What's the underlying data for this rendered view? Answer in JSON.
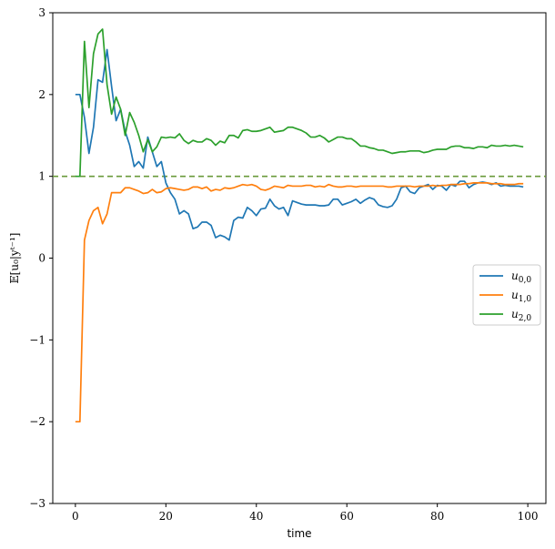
{
  "chart_data": {
    "type": "line",
    "title": "",
    "xlabel": "time",
    "ylabel": "𝔼[u₀|yᵗ⁻¹]",
    "xlim": [
      -5,
      104
    ],
    "ylim": [
      -3,
      3
    ],
    "xticks": [
      0,
      20,
      40,
      60,
      80,
      100
    ],
    "yticks": [
      -3,
      -2,
      -1,
      0,
      1,
      2,
      3
    ],
    "xtick_labels": [
      "0",
      "20",
      "40",
      "60",
      "80",
      "100"
    ],
    "ytick_labels": [
      "−3",
      "−2",
      "−1",
      "0",
      "1",
      "2",
      "3"
    ],
    "grid": false,
    "legend_position": "center-right",
    "reference_line": {
      "y": 1.0,
      "style": "dashed",
      "color": "#6a9a3a"
    },
    "series": [
      {
        "name": "u0,0",
        "color": "#1f77b4",
        "x": [
          0,
          1,
          2,
          3,
          4,
          5,
          6,
          7,
          8,
          9,
          10,
          11,
          12,
          13,
          14,
          15,
          16,
          17,
          18,
          19,
          20,
          21,
          22,
          23,
          24,
          25,
          26,
          27,
          28,
          29,
          30,
          31,
          32,
          33,
          34,
          35,
          36,
          37,
          38,
          39,
          40,
          41,
          42,
          43,
          44,
          45,
          46,
          47,
          48,
          49,
          50,
          51,
          52,
          53,
          54,
          55,
          56,
          57,
          58,
          59,
          60,
          61,
          62,
          63,
          64,
          65,
          66,
          67,
          68,
          69,
          70,
          71,
          72,
          73,
          74,
          75,
          76,
          77,
          78,
          79,
          80,
          81,
          82,
          83,
          84,
          85,
          86,
          87,
          88,
          89,
          90,
          91,
          92,
          93,
          94,
          95,
          96,
          97,
          98,
          99
        ],
        "y": [
          2.0,
          2.0,
          1.72,
          1.28,
          1.6,
          2.18,
          2.15,
          2.55,
          2.1,
          1.68,
          1.82,
          1.55,
          1.38,
          1.12,
          1.18,
          1.1,
          1.48,
          1.3,
          1.12,
          1.18,
          0.92,
          0.8,
          0.72,
          0.54,
          0.58,
          0.54,
          0.36,
          0.38,
          0.44,
          0.44,
          0.4,
          0.25,
          0.28,
          0.26,
          0.22,
          0.46,
          0.5,
          0.49,
          0.62,
          0.58,
          0.52,
          0.6,
          0.61,
          0.72,
          0.64,
          0.6,
          0.62,
          0.52,
          0.7,
          0.68,
          0.66,
          0.65,
          0.65,
          0.65,
          0.64,
          0.64,
          0.65,
          0.72,
          0.72,
          0.65,
          0.67,
          0.69,
          0.72,
          0.67,
          0.71,
          0.74,
          0.72,
          0.65,
          0.63,
          0.62,
          0.64,
          0.72,
          0.86,
          0.88,
          0.81,
          0.79,
          0.86,
          0.88,
          0.9,
          0.84,
          0.89,
          0.88,
          0.83,
          0.9,
          0.88,
          0.94,
          0.94,
          0.86,
          0.9,
          0.92,
          0.93,
          0.92,
          0.9,
          0.92,
          0.88,
          0.89,
          0.88,
          0.88,
          0.88,
          0.87
        ]
      },
      {
        "name": "u1,0",
        "color": "#ff7f0e",
        "x": [
          0,
          1,
          2,
          3,
          4,
          5,
          6,
          7,
          8,
          9,
          10,
          11,
          12,
          13,
          14,
          15,
          16,
          17,
          18,
          19,
          20,
          21,
          22,
          23,
          24,
          25,
          26,
          27,
          28,
          29,
          30,
          31,
          32,
          33,
          34,
          35,
          36,
          37,
          38,
          39,
          40,
          41,
          42,
          43,
          44,
          45,
          46,
          47,
          48,
          49,
          50,
          51,
          52,
          53,
          54,
          55,
          56,
          57,
          58,
          59,
          60,
          61,
          62,
          63,
          64,
          65,
          66,
          67,
          68,
          69,
          70,
          71,
          72,
          73,
          74,
          75,
          76,
          77,
          78,
          79,
          80,
          81,
          82,
          83,
          84,
          85,
          86,
          87,
          88,
          89,
          90,
          91,
          92,
          93,
          94,
          95,
          96,
          97,
          98,
          99
        ],
        "y": [
          -2.0,
          -2.0,
          0.22,
          0.46,
          0.58,
          0.62,
          0.42,
          0.54,
          0.8,
          0.8,
          0.8,
          0.86,
          0.86,
          0.84,
          0.82,
          0.79,
          0.8,
          0.84,
          0.8,
          0.81,
          0.85,
          0.86,
          0.85,
          0.84,
          0.83,
          0.84,
          0.87,
          0.87,
          0.85,
          0.87,
          0.82,
          0.84,
          0.83,
          0.86,
          0.85,
          0.86,
          0.88,
          0.9,
          0.89,
          0.9,
          0.88,
          0.84,
          0.83,
          0.85,
          0.88,
          0.87,
          0.86,
          0.89,
          0.88,
          0.88,
          0.88,
          0.89,
          0.89,
          0.87,
          0.88,
          0.87,
          0.9,
          0.88,
          0.87,
          0.87,
          0.88,
          0.88,
          0.87,
          0.88,
          0.88,
          0.88,
          0.88,
          0.88,
          0.88,
          0.87,
          0.87,
          0.88,
          0.88,
          0.88,
          0.88,
          0.87,
          0.88,
          0.88,
          0.88,
          0.89,
          0.88,
          0.89,
          0.89,
          0.9,
          0.9,
          0.9,
          0.91,
          0.91,
          0.92,
          0.92,
          0.92,
          0.92,
          0.91,
          0.91,
          0.91,
          0.9,
          0.9,
          0.9,
          0.91,
          0.91
        ]
      },
      {
        "name": "u2,0",
        "color": "#2ca02c",
        "x": [
          0,
          1,
          2,
          3,
          4,
          5,
          6,
          7,
          8,
          9,
          10,
          11,
          12,
          13,
          14,
          15,
          16,
          17,
          18,
          19,
          20,
          21,
          22,
          23,
          24,
          25,
          26,
          27,
          28,
          29,
          30,
          31,
          32,
          33,
          34,
          35,
          36,
          37,
          38,
          39,
          40,
          41,
          42,
          43,
          44,
          45,
          46,
          47,
          48,
          49,
          50,
          51,
          52,
          53,
          54,
          55,
          56,
          57,
          58,
          59,
          60,
          61,
          62,
          63,
          64,
          65,
          66,
          67,
          68,
          69,
          70,
          71,
          72,
          73,
          74,
          75,
          76,
          77,
          78,
          79,
          80,
          81,
          82,
          83,
          84,
          85,
          86,
          87,
          88,
          89,
          90,
          91,
          92,
          93,
          94,
          95,
          96,
          97,
          98,
          99
        ],
        "y": [
          1.0,
          1.0,
          2.65,
          1.84,
          2.5,
          2.74,
          2.8,
          2.12,
          1.76,
          1.97,
          1.82,
          1.5,
          1.78,
          1.66,
          1.5,
          1.3,
          1.45,
          1.3,
          1.36,
          1.48,
          1.47,
          1.48,
          1.47,
          1.52,
          1.44,
          1.4,
          1.44,
          1.42,
          1.42,
          1.46,
          1.44,
          1.38,
          1.43,
          1.41,
          1.5,
          1.5,
          1.47,
          1.56,
          1.57,
          1.55,
          1.55,
          1.56,
          1.58,
          1.6,
          1.54,
          1.55,
          1.56,
          1.6,
          1.6,
          1.58,
          1.56,
          1.53,
          1.48,
          1.48,
          1.5,
          1.47,
          1.42,
          1.45,
          1.48,
          1.48,
          1.46,
          1.46,
          1.42,
          1.37,
          1.37,
          1.35,
          1.34,
          1.32,
          1.32,
          1.3,
          1.28,
          1.29,
          1.3,
          1.3,
          1.31,
          1.31,
          1.31,
          1.29,
          1.3,
          1.32,
          1.33,
          1.33,
          1.33,
          1.36,
          1.37,
          1.37,
          1.35,
          1.35,
          1.34,
          1.36,
          1.36,
          1.35,
          1.38,
          1.37,
          1.37,
          1.38,
          1.37,
          1.38,
          1.37,
          1.36
        ]
      }
    ],
    "legend": [
      {
        "label": "u0,0",
        "base": "u",
        "sub": "0,0"
      },
      {
        "label": "u1,0",
        "base": "u",
        "sub": "1,0"
      },
      {
        "label": "u2,0",
        "base": "u",
        "sub": "2,0"
      }
    ]
  }
}
